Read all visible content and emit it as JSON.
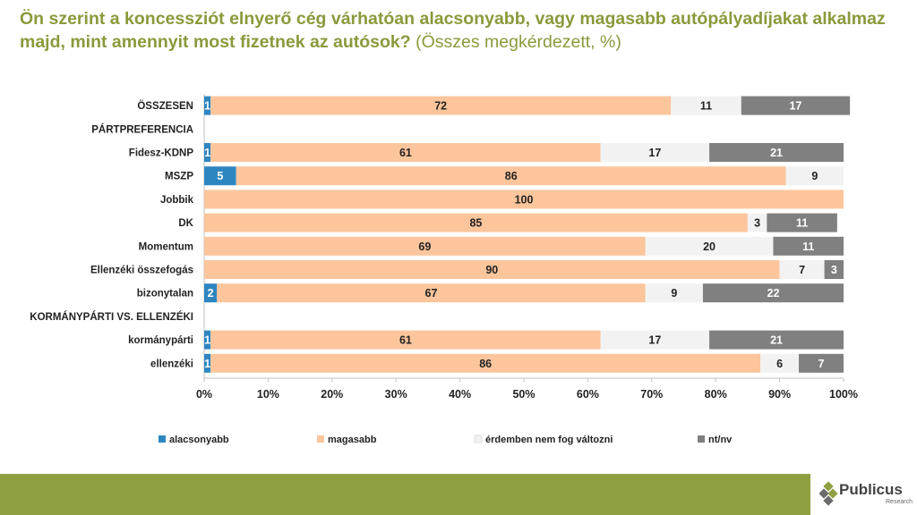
{
  "title": {
    "main": "Ön szerint a koncessziót elnyerő cég várhatóan alacsonyabb, vagy magasabb autópályadíjakat alkalmaz majd, mint amennyit most fizetnek az autósok?",
    "sub": "(Összes megkérdezett, %)"
  },
  "logo": {
    "name": "Publicus",
    "sub": "Research"
  },
  "colors": {
    "alacsonyabb": "#2e86c1",
    "magasabb": "#fcc59c",
    "nem_valtozik": "#f2f2f2",
    "ntnv": "#808080",
    "title": "#8a9a3c",
    "footer": "#8fa042"
  },
  "chart_data": {
    "type": "bar",
    "orientation": "horizontal-stacked-100",
    "title": "Ön szerint a koncessziót elnyerő cég várhatóan alacsonyabb, vagy magasabb autópályadíjakat alkalmaz majd, mint amennyit most fizetnek az autósok?",
    "categories": [
      "ÖSSZESEN",
      "PÁRTPREFERENCIA",
      "Fidesz-KDNP",
      "MSZP",
      "Jobbik",
      "DK",
      "Momentum",
      "Ellenzéki összefogás",
      "bizonytalan",
      "KORMÁNYPÁRTI VS. ELLENZÉKI",
      "kormánypárti",
      "ellenzéki"
    ],
    "series": [
      {
        "name": "alacsonyabb",
        "values": [
          1,
          null,
          1,
          5,
          0,
          0,
          0,
          0,
          2,
          null,
          1,
          1
        ],
        "color": "#2e86c1"
      },
      {
        "name": "magasabb",
        "values": [
          72,
          null,
          61,
          86,
          100,
          85,
          69,
          90,
          67,
          null,
          61,
          86
        ],
        "color": "#fcc59c"
      },
      {
        "name": "érdemben nem fog változni",
        "values": [
          11,
          null,
          17,
          9,
          0,
          3,
          20,
          7,
          9,
          null,
          17,
          6
        ],
        "color": "#f2f2f2"
      },
      {
        "name": "nt/nv",
        "values": [
          17,
          null,
          21,
          0,
          0,
          11,
          11,
          3,
          22,
          null,
          21,
          7
        ],
        "color": "#808080"
      }
    ],
    "xlim": [
      0,
      100
    ],
    "xticks": [
      "0%",
      "10%",
      "20%",
      "30%",
      "40%",
      "50%",
      "60%",
      "70%",
      "80%",
      "90%",
      "100%"
    ],
    "legend": [
      "alacsonyabb",
      "magasabb",
      "érdemben nem fog változni",
      "nt/nv"
    ],
    "legend_position": "bottom"
  }
}
